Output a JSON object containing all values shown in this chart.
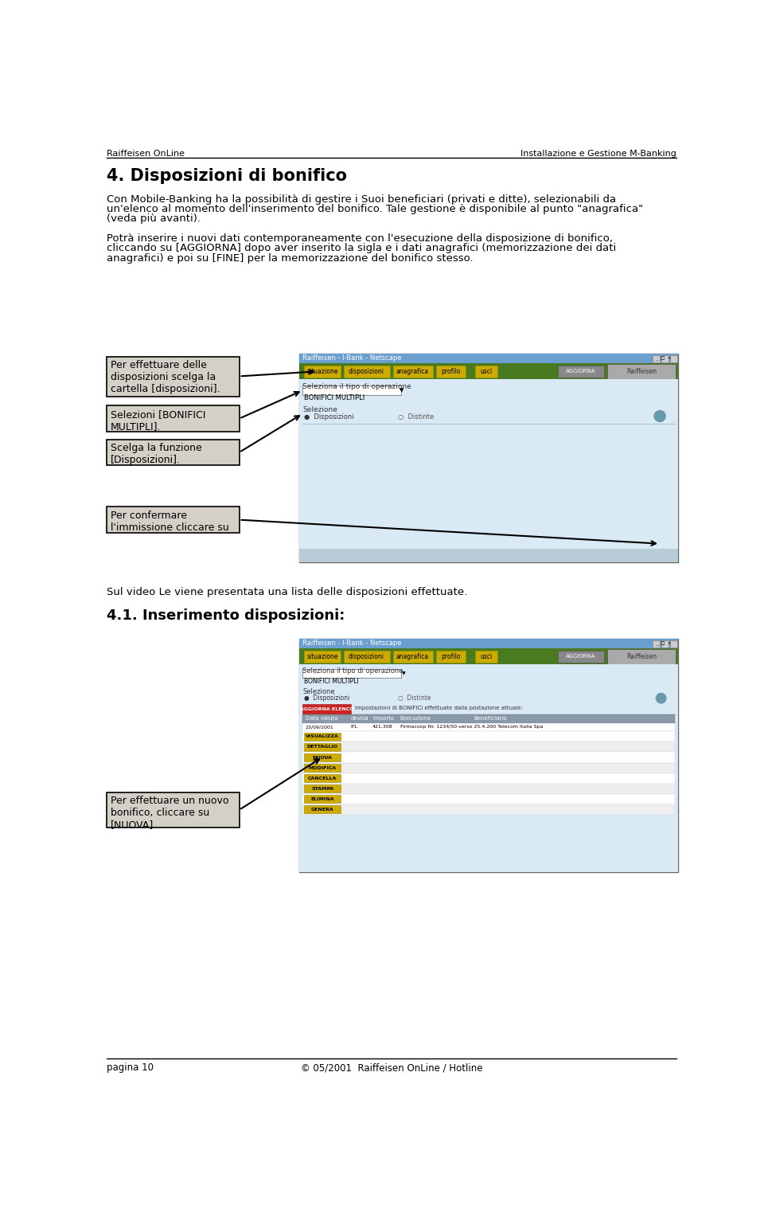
{
  "header_left": "Raiffeisen OnLine",
  "header_right": "Installazione e Gestione M-Banking",
  "section_title": "4. Disposizioni di bonifico",
  "para1_line1": "Con Mobile-Banking ha la possibilità di gestire i Suoi beneficiari (privati e ditte), selezionabili da",
  "para1_line2": "un'elenco al momento dell'inserimento del bonifico. Tale gestione è disponibile al punto \"anagrafica\"",
  "para1_line3": "(veda più avanti).",
  "para2_line1": "Potrà inserire i nuovi dati contemporaneamente con l'esecuzione della disposizione di bonifico,",
  "para2_line2": "cliccando su [AGGIORNA] dopo aver inserito la sigla e i dati anagrafici (memorizzazione dei dati",
  "para2_line3": "anagrafici) e poi su [FINE] per la memorizzazione del bonifico stesso.",
  "box1_text": "Per effettuare delle\ndisposizioni scelga la\ncartella [disposizioni].",
  "box2_text": "Selezioni [BONIFICI\nMULTIPLI].",
  "box3_text": "Scelga la funzione\n[Disposizioni].",
  "box4_text": "Per confermare\nl'immissione cliccare su",
  "section2_text": "Sul video Le viene presentata una lista delle disposizioni effettuate.",
  "section2_title": "4.1. Inserimento disposizioni:",
  "box5_text": "Per effettuare un nuovo\nbonifico, cliccare su\n[NUOVA].",
  "footer_left": "pagina 10",
  "footer_center": "© 05/2001  Raiffeisen OnLine / Hotline",
  "bg_color": "#ffffff",
  "text_color": "#000000",
  "box_border_color": "#000000",
  "box_bg_color": "#d4d0c8",
  "green_bar": "#4a7a20",
  "title_bar_color": "#6a9fd0",
  "content_bg": "#daeaf5",
  "arrow_color": "#000000",
  "nav_btn_color": "#ccaa00",
  "aggiorna_btn_color": "#888888",
  "raiff_btn_color": "#aaaaaa"
}
